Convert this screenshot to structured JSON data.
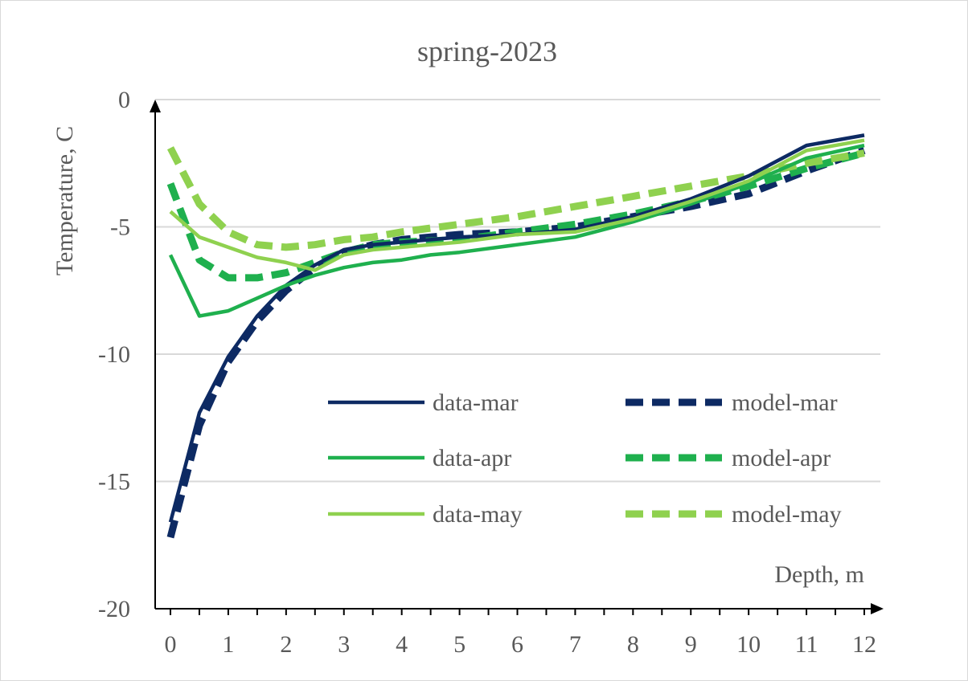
{
  "chart_data": {
    "type": "line",
    "title": "spring-2023",
    "xlabel": "Depth, m",
    "ylabel": "Temperature, C",
    "xlim": [
      0,
      12
    ],
    "ylim": [
      -20,
      0
    ],
    "x_ticks": [
      "0",
      "1",
      "2",
      "3",
      "4",
      "5",
      "6",
      "7",
      "8",
      "9",
      "10",
      "11",
      "12"
    ],
    "y_ticks": [
      "0",
      "-5",
      "-10",
      "-15",
      "-20"
    ],
    "y_tick_values": [
      0,
      -5,
      -10,
      -15,
      -20
    ],
    "grid": "horizontal",
    "legend_position": "lower-right",
    "series": [
      {
        "name": "data-mar",
        "color": "#0d2a63",
        "dash": "solid",
        "x": [
          0,
          0.5,
          1,
          1.5,
          2,
          2.5,
          3,
          3.5,
          4,
          5,
          6,
          7,
          8,
          9,
          10,
          10.5,
          11,
          12
        ],
        "y": [
          -16.6,
          -12.3,
          -10.1,
          -8.5,
          -7.3,
          -6.5,
          -5.9,
          -5.7,
          -5.6,
          -5.4,
          -5.3,
          -5.1,
          -4.6,
          -3.9,
          -3.0,
          -2.4,
          -1.8,
          -1.4
        ]
      },
      {
        "name": "model-mar",
        "color": "#0d2a63",
        "dash": "dashed",
        "x": [
          0,
          0.5,
          1,
          1.5,
          2,
          2.5,
          3,
          3.5,
          4,
          5,
          6,
          7,
          8,
          9,
          10,
          11,
          12
        ],
        "y": [
          -17.2,
          -12.8,
          -10.3,
          -8.7,
          -7.5,
          -6.6,
          -6.0,
          -5.7,
          -5.5,
          -5.3,
          -5.2,
          -5.0,
          -4.6,
          -4.2,
          -3.7,
          -2.8,
          -2.0
        ]
      },
      {
        "name": "data-apr",
        "color": "#1fb04e",
        "dash": "solid",
        "x": [
          0,
          0.5,
          1,
          1.5,
          2,
          2.5,
          3,
          3.5,
          4,
          4.5,
          5,
          6,
          7,
          8,
          9,
          10,
          11,
          12
        ],
        "y": [
          -6.1,
          -8.5,
          -8.3,
          -7.8,
          -7.3,
          -6.9,
          -6.6,
          -6.4,
          -6.3,
          -6.1,
          -6.0,
          -5.7,
          -5.4,
          -4.8,
          -4.1,
          -3.3,
          -2.3,
          -1.8
        ]
      },
      {
        "name": "model-apr",
        "color": "#1fb04e",
        "dash": "dashed",
        "x": [
          0,
          0.5,
          1,
          1.5,
          2,
          2.5,
          3,
          3.5,
          4,
          5,
          6,
          7,
          8,
          9,
          10,
          11,
          12
        ],
        "y": [
          -3.3,
          -6.3,
          -7.0,
          -7.0,
          -6.8,
          -6.4,
          -6.0,
          -5.7,
          -5.6,
          -5.5,
          -5.2,
          -4.9,
          -4.5,
          -4.0,
          -3.4,
          -2.7,
          -2.1
        ]
      },
      {
        "name": "data-may",
        "color": "#8fd14f",
        "dash": "solid",
        "x": [
          0,
          0.5,
          1,
          1.5,
          2,
          2.5,
          3,
          3.5,
          4,
          5,
          6,
          7,
          8,
          9,
          10,
          11,
          12
        ],
        "y": [
          -4.4,
          -5.4,
          -5.8,
          -6.2,
          -6.4,
          -6.7,
          -6.1,
          -5.9,
          -5.8,
          -5.6,
          -5.3,
          -5.2,
          -4.7,
          -4.0,
          -3.2,
          -2.0,
          -1.6
        ]
      },
      {
        "name": "model-may",
        "color": "#8fd14f",
        "dash": "dashed",
        "x": [
          0,
          0.5,
          1,
          1.5,
          2,
          2.5,
          3,
          3.5,
          4,
          5,
          6,
          7,
          8,
          9,
          10,
          11,
          12
        ],
        "y": [
          -1.9,
          -4.1,
          -5.2,
          -5.7,
          -5.8,
          -5.7,
          -5.5,
          -5.4,
          -5.2,
          -4.9,
          -4.6,
          -4.2,
          -3.8,
          -3.4,
          -3.0,
          -2.5,
          -2.1
        ]
      }
    ]
  }
}
